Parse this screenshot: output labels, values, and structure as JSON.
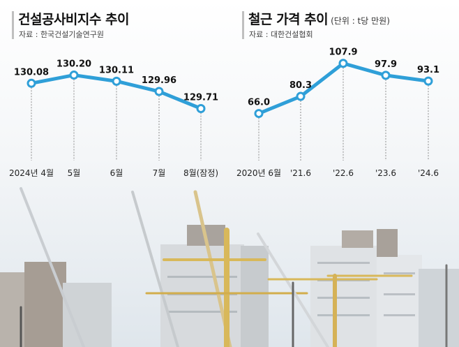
{
  "chart_data": [
    {
      "type": "line",
      "title": "건설공사비지수 추이",
      "source": "자료 : 한국건설기술연구원",
      "categories": [
        "2024년 4월",
        "5월",
        "6월",
        "7월",
        "8월(잠정)"
      ],
      "values": [
        130.08,
        130.2,
        130.11,
        129.96,
        129.71
      ],
      "data_labels": [
        "130.08",
        "130.20",
        "130.11",
        "129.96",
        "129.71"
      ],
      "ylim": [
        129.5,
        130.4
      ],
      "grid": false,
      "color": "#2f9fd8"
    },
    {
      "type": "line",
      "title": "철근 가격 추이",
      "unit": "(단위 : t당 만원)",
      "source": "자료 : 대한건설협회",
      "categories": [
        "2020년 6월",
        "'21.6",
        "'22.6",
        "'23.6",
        "'24.6"
      ],
      "values": [
        66.0,
        80.3,
        107.9,
        97.9,
        93.1
      ],
      "data_labels": [
        "66.0",
        "80.3",
        "107.9",
        "97.9",
        "93.1"
      ],
      "ylim": [
        50,
        120
      ],
      "grid": false,
      "color": "#2f9fd8"
    }
  ]
}
